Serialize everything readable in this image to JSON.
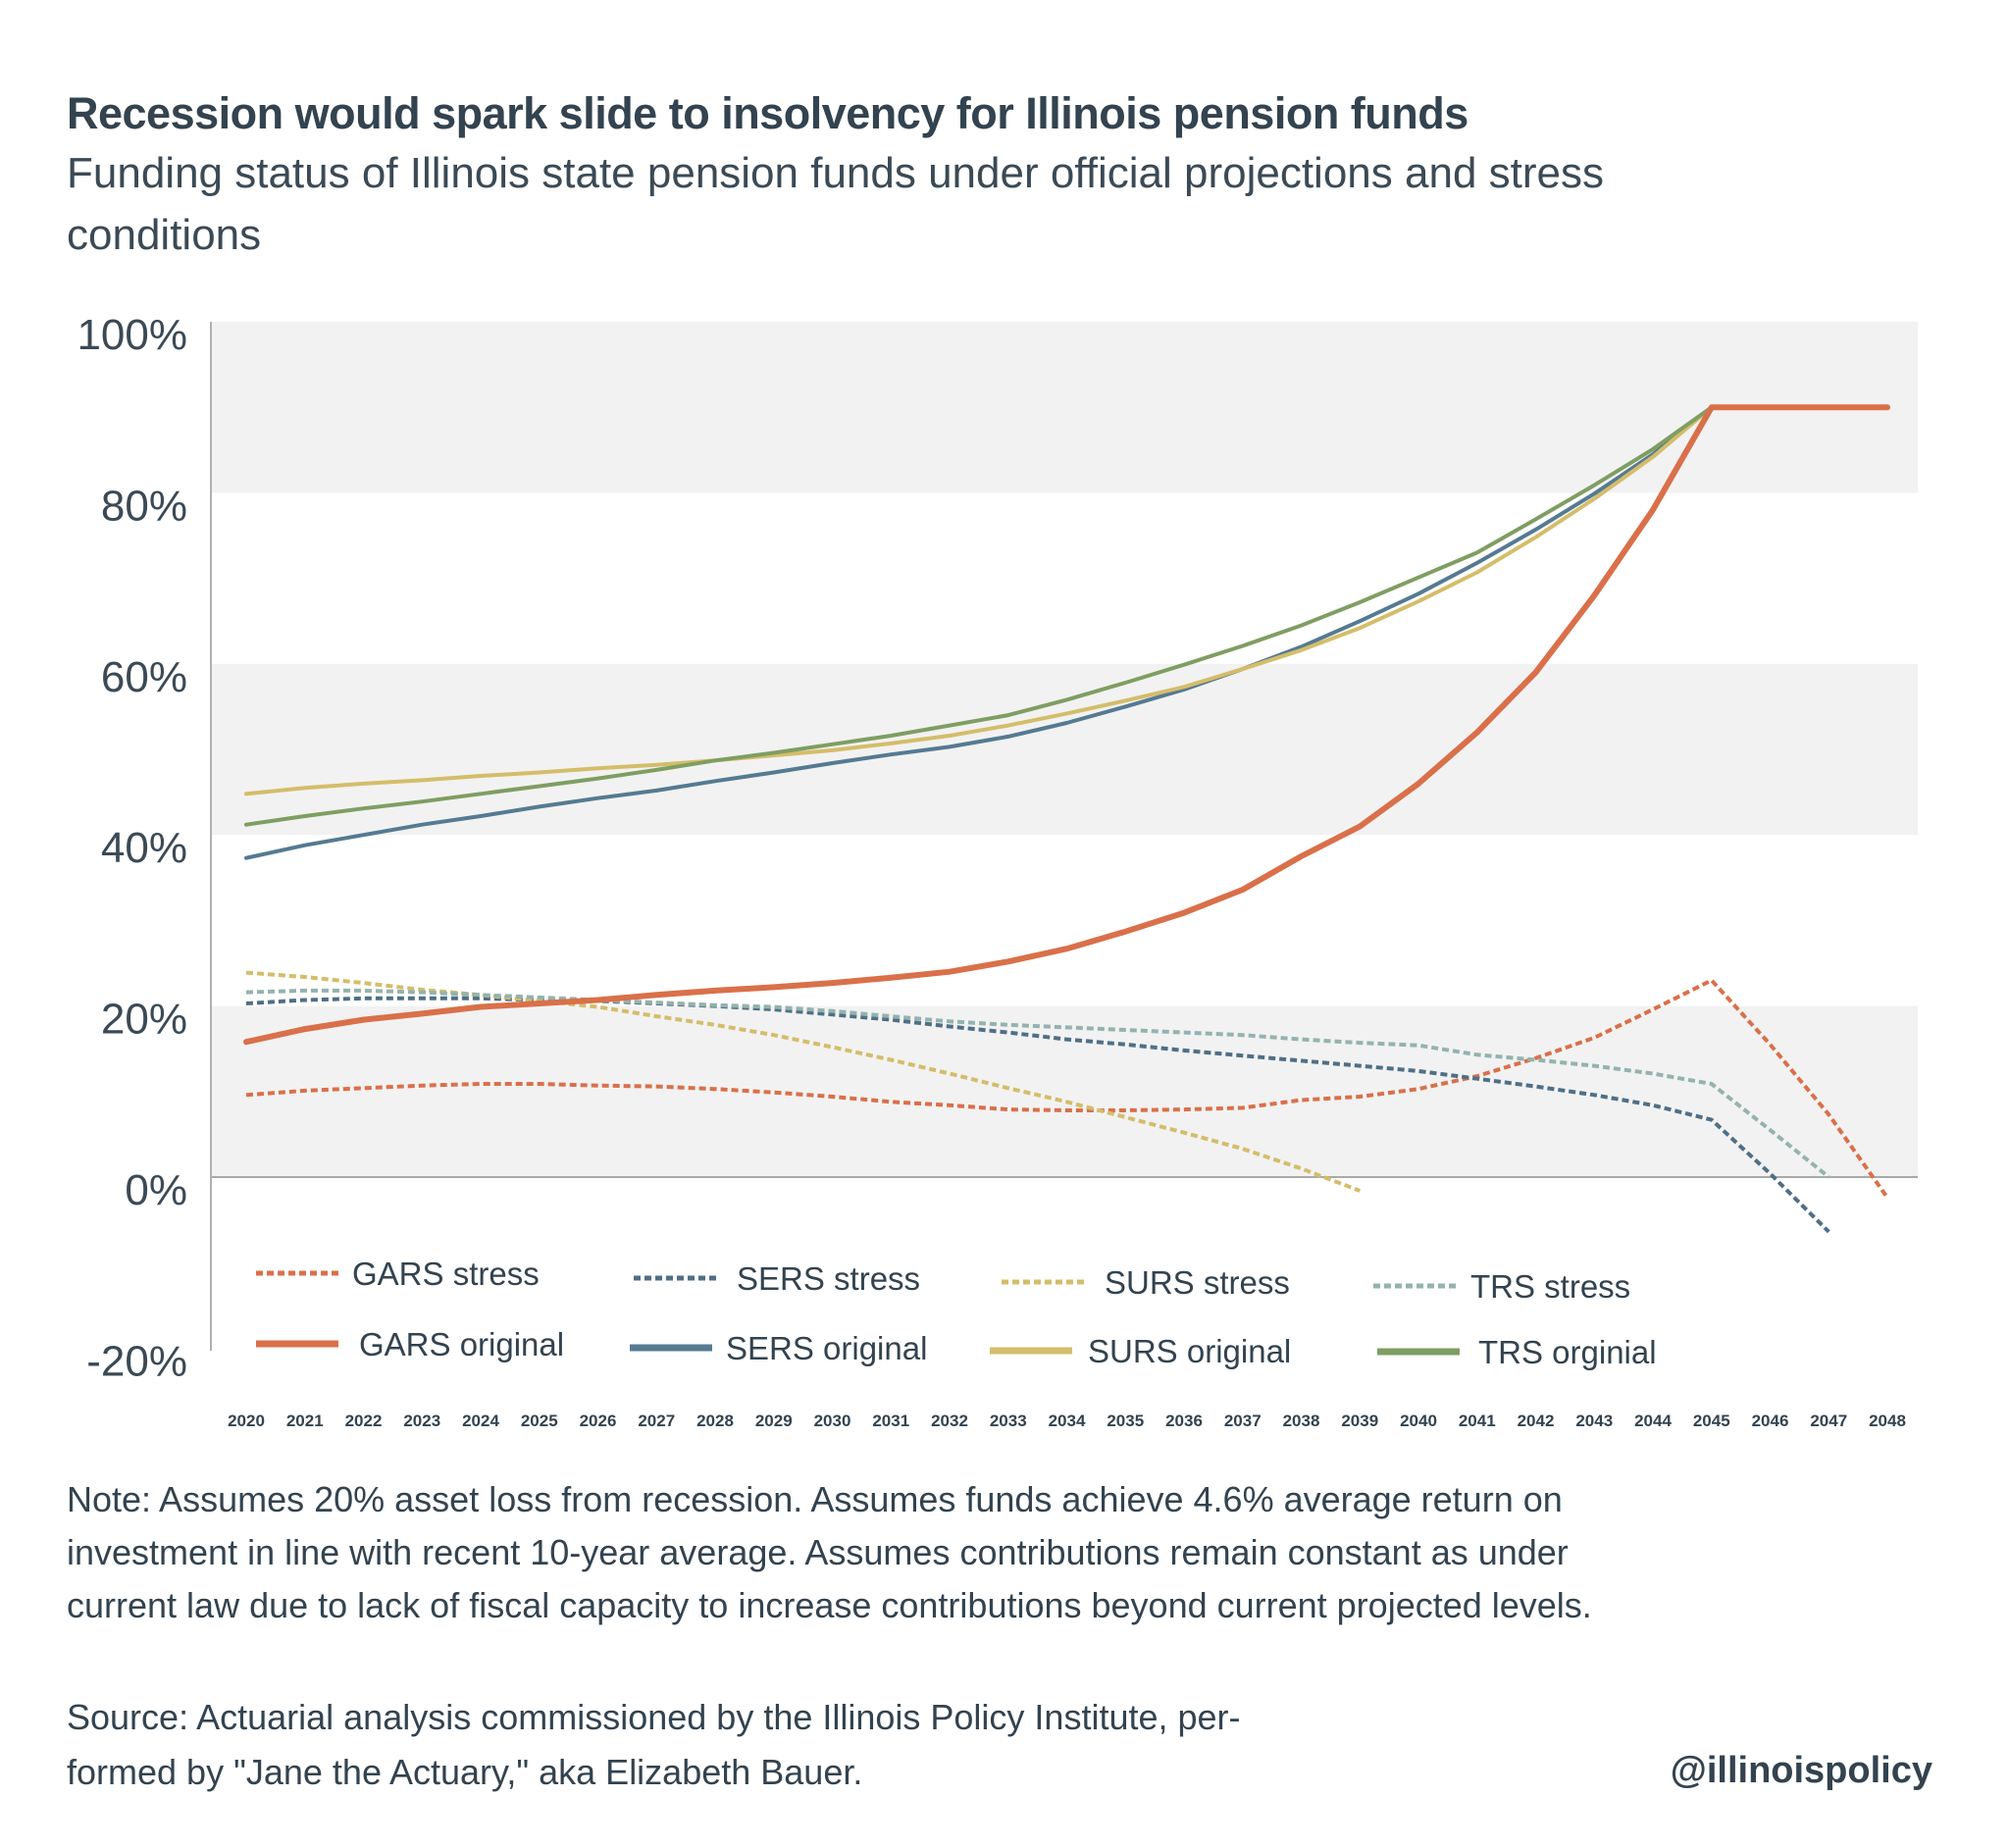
{
  "title": "Recession would spark slide to insolvency for Illinois pension funds",
  "subtitle_lines": [
    "Funding status of Illinois state pension funds under official projections and stress",
    "conditions"
  ],
  "note_lines": [
    "Note: Assumes 20% asset loss from recession. Assumes funds achieve 4.6% average return on",
    "investment in line with recent 10-year average. Assumes contributions remain constant as under",
    "current law due to lack of fiscal capacity to increase contributions beyond current projected levels."
  ],
  "source_lines": [
    "Source:  Actuarial analysis commissioned by the Illinois Policy Institute, per-",
    "formed by \"Jane the Actuary,\" aka Elizabeth Bauer."
  ],
  "handle": "@illinoispolicy",
  "chart_data": {
    "type": "line",
    "title": "Recession would spark slide to insolvency for Illinois pension funds",
    "xlabel": "",
    "ylabel": "",
    "ylim": [
      -20,
      100
    ],
    "yticks": [
      100,
      80,
      60,
      40,
      20,
      0,
      -20
    ],
    "ytick_labels": [
      "100%",
      "80%",
      "60%",
      "40%",
      "20%",
      "0%",
      "-20%"
    ],
    "grid": "alternating horizontal bands",
    "legend_position": "bottom-inside",
    "x": [
      2020,
      2021,
      2022,
      2023,
      2024,
      2025,
      2026,
      2027,
      2028,
      2029,
      2030,
      2031,
      2032,
      2033,
      2034,
      2035,
      2036,
      2037,
      2038,
      2039,
      2040,
      2041,
      2042,
      2043,
      2044,
      2045,
      2046,
      2047,
      2048
    ],
    "series": [
      {
        "name": "GARS stress",
        "color": "#d9704a",
        "dashed": true,
        "values": [
          9.6,
          10.1,
          10.4,
          10.7,
          10.9,
          10.9,
          10.7,
          10.6,
          10.3,
          9.9,
          9.4,
          8.8,
          8.4,
          7.9,
          7.8,
          7.8,
          7.9,
          8.1,
          9.0,
          9.4,
          10.3,
          11.8,
          13.9,
          16.3,
          19.6,
          23.0,
          15.5,
          7.3,
          -2.4
        ]
      },
      {
        "name": "SERS stress",
        "color": "#4f6f86",
        "dashed": true,
        "values": [
          20.3,
          20.7,
          20.9,
          20.9,
          20.9,
          20.7,
          20.6,
          20.3,
          20.0,
          19.6,
          19.0,
          18.4,
          17.6,
          16.9,
          16.1,
          15.5,
          14.8,
          14.2,
          13.6,
          13.0,
          12.4,
          11.5,
          10.6,
          9.6,
          8.4,
          6.7,
          0.4,
          -6.4,
          null
        ]
      },
      {
        "name": "SURS stress",
        "color": "#d4bd6a",
        "dashed": true,
        "values": [
          23.9,
          23.4,
          22.7,
          21.9,
          21.3,
          20.6,
          19.9,
          18.8,
          17.8,
          16.6,
          15.2,
          13.7,
          12.1,
          10.4,
          8.8,
          7.0,
          5.2,
          3.3,
          1.0,
          -1.6,
          null,
          null,
          null,
          null,
          null,
          null,
          null,
          null,
          null
        ]
      },
      {
        "name": "TRS stress",
        "color": "#94b3ae",
        "dashed": true,
        "values": [
          21.6,
          21.8,
          21.8,
          21.6,
          21.3,
          21.0,
          20.7,
          20.4,
          20.1,
          19.9,
          19.4,
          18.8,
          18.2,
          17.8,
          17.5,
          17.2,
          16.9,
          16.6,
          16.1,
          15.7,
          15.4,
          14.3,
          13.7,
          13.0,
          12.1,
          10.9,
          5.5,
          0.0,
          null
        ]
      },
      {
        "name": "GARS original",
        "color": "#d9704a",
        "dashed": false,
        "width": 6,
        "values": [
          15.8,
          17.3,
          18.4,
          19.1,
          19.9,
          20.3,
          20.7,
          21.3,
          21.8,
          22.2,
          22.7,
          23.3,
          24.0,
          25.2,
          26.7,
          28.7,
          30.9,
          33.6,
          37.5,
          41.0,
          46.0,
          52.0,
          59.0,
          68.0,
          78.0,
          90.0,
          90.0,
          90.0,
          90.0
        ]
      },
      {
        "name": "SERS original",
        "color": "#557a92",
        "dashed": false,
        "width": 4,
        "values": [
          37.3,
          38.8,
          40.0,
          41.2,
          42.2,
          43.3,
          44.3,
          45.2,
          46.3,
          47.3,
          48.4,
          49.4,
          50.3,
          51.5,
          53.1,
          55.0,
          57.0,
          59.4,
          62.0,
          65.0,
          68.2,
          71.8,
          75.7,
          79.9,
          84.5,
          90.0,
          90.0,
          90.0,
          90.0
        ]
      },
      {
        "name": "SURS original",
        "color": "#d4bd6a",
        "dashed": false,
        "width": 4,
        "values": [
          44.8,
          45.5,
          46.0,
          46.4,
          46.9,
          47.3,
          47.8,
          48.2,
          48.7,
          49.3,
          49.9,
          50.7,
          51.6,
          52.8,
          54.2,
          55.7,
          57.3,
          59.4,
          61.6,
          64.2,
          67.3,
          70.7,
          74.8,
          79.3,
          84.2,
          90.0,
          90.0,
          90.0,
          90.0
        ]
      },
      {
        "name": "TRS orginial",
        "color": "#7f9e62",
        "dashed": false,
        "width": 4,
        "values": [
          41.2,
          42.2,
          43.1,
          43.9,
          44.8,
          45.7,
          46.6,
          47.6,
          48.7,
          49.6,
          50.6,
          51.6,
          52.8,
          54.0,
          55.8,
          57.8,
          59.9,
          62.1,
          64.5,
          67.2,
          70.1,
          73.0,
          76.9,
          80.9,
          85.1,
          90.0,
          90.0,
          90.0,
          90.0
        ]
      }
    ]
  }
}
